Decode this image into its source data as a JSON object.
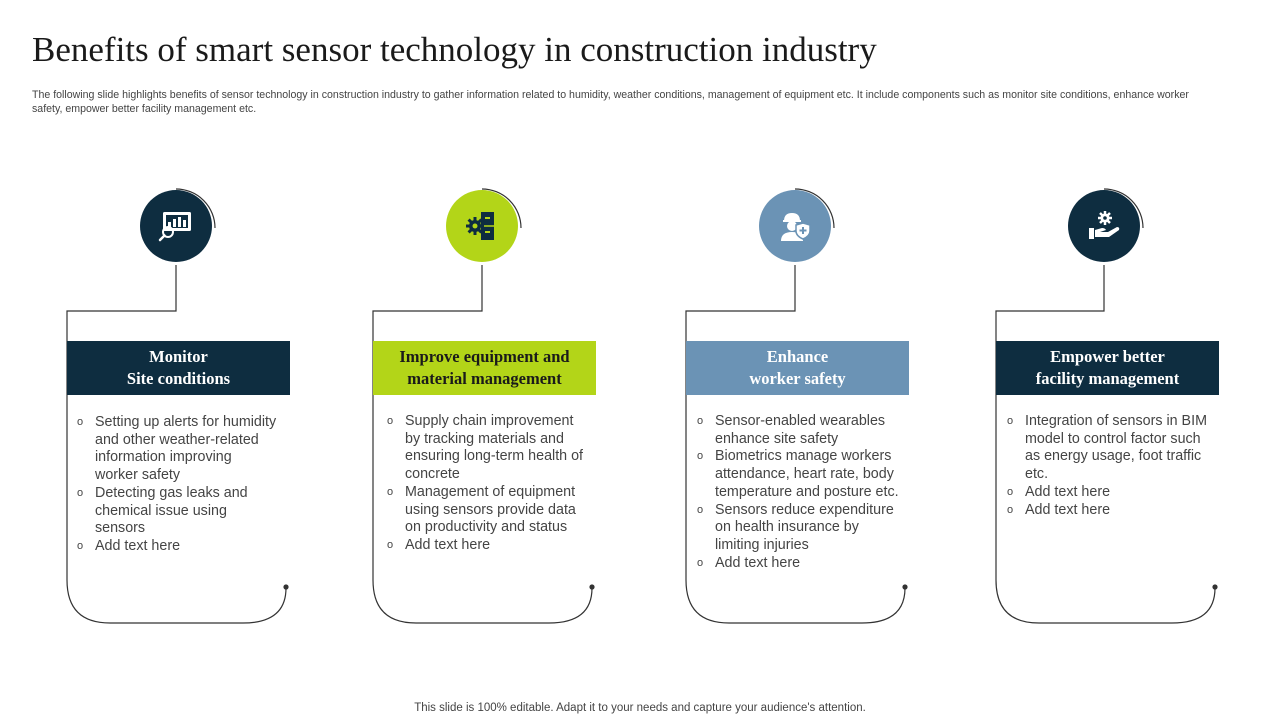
{
  "title": "Benefits of smart sensor technology in construction industry",
  "subtitle": "The following slide highlights benefits of sensor technology in construction industry to gather information related to humidity, weather conditions, management of equipment etc. It include components such as monitor site conditions, enhance worker safety, empower better facility management etc.",
  "footer": "This slide is 100% editable. Adapt it to your needs and capture your audience's attention.",
  "colors": {
    "navy": "#0e2d40",
    "lime": "#b3d518",
    "steel_blue": "#6b93b5",
    "line": "#333333"
  },
  "cards": [
    {
      "icon": "monitor-chart-icon",
      "heading_line1": "Monitor",
      "heading_line2": "Site conditions",
      "bullets": [
        "Setting up alerts for humidity and other weather-related information improving worker safety",
        "Detecting gas leaks and chemical issue using sensors",
        "Add text here"
      ]
    },
    {
      "icon": "gear-cabinet-icon",
      "heading_line1": "Improve equipment and",
      "heading_line2": "material management",
      "bullets": [
        "Supply chain improvement by tracking materials and ensuring long-term health of concrete",
        "Management of equipment using sensors provide data on productivity and status",
        "Add text here"
      ]
    },
    {
      "icon": "worker-shield-icon",
      "heading_line1": "Enhance",
      "heading_line2": "worker safety",
      "bullets": [
        "Sensor-enabled wearables enhance site safety",
        "Biometrics manage workers attendance, heart rate, body temperature and posture etc.",
        "Sensors reduce expenditure on health insurance by limiting injuries",
        "Add text here"
      ]
    },
    {
      "icon": "hand-gear-icon",
      "heading_line1": "Empower better",
      "heading_line2": "facility management",
      "bullets": [
        "Integration of sensors in BIM model to control factor such as energy usage, foot traffic etc.",
        "Add text here",
        "Add text here"
      ]
    }
  ]
}
